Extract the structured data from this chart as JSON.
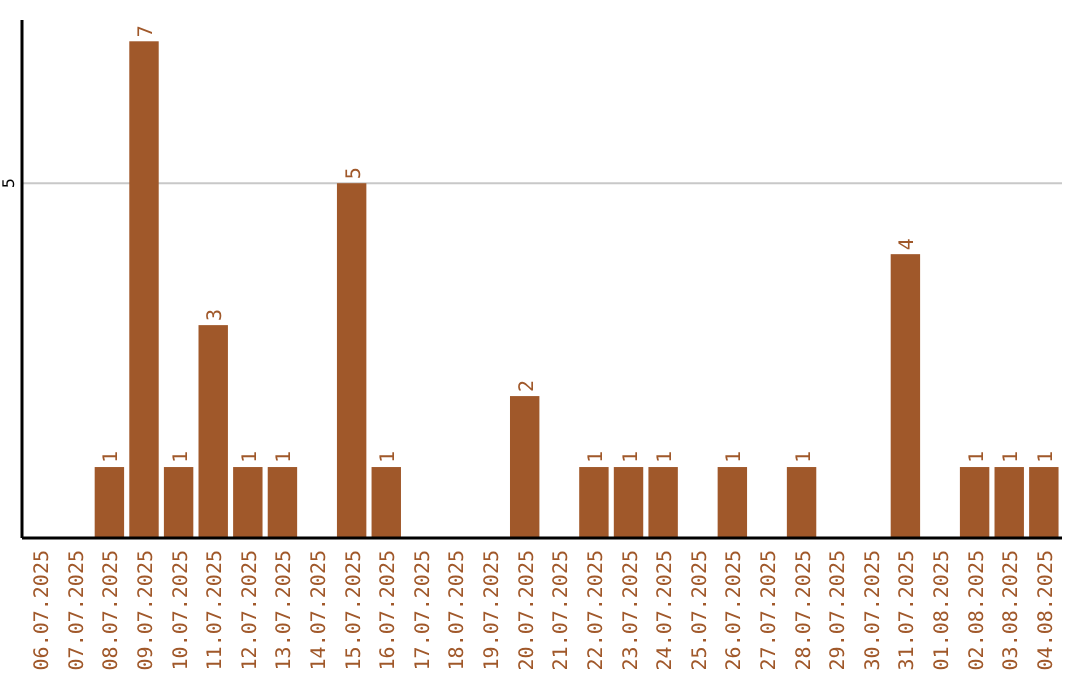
{
  "chart_data": {
    "type": "bar",
    "categories": [
      "06.07.2025",
      "07.07.2025",
      "08.07.2025",
      "09.07.2025",
      "10.07.2025",
      "11.07.2025",
      "12.07.2025",
      "13.07.2025",
      "14.07.2025",
      "15.07.2025",
      "16.07.2025",
      "17.07.2025",
      "18.07.2025",
      "19.07.2025",
      "20.07.2025",
      "21.07.2025",
      "22.07.2025",
      "23.07.2025",
      "24.07.2025",
      "25.07.2025",
      "26.07.2025",
      "27.07.2025",
      "28.07.2025",
      "29.07.2025",
      "30.07.2025",
      "31.07.2025",
      "01.08.2025",
      "02.08.2025",
      "03.08.2025",
      "04.08.2025"
    ],
    "values": [
      0,
      0,
      1,
      7,
      1,
      3,
      1,
      1,
      0,
      5,
      1,
      0,
      0,
      0,
      2,
      0,
      1,
      1,
      1,
      0,
      1,
      0,
      1,
      0,
      0,
      4,
      0,
      1,
      1,
      1
    ],
    "value_labels": [
      null,
      null,
      "1",
      "7",
      "1",
      "3",
      "1",
      "1",
      null,
      "5",
      "1",
      null,
      null,
      null,
      "2",
      null,
      "1",
      "1",
      "1",
      null,
      "1",
      null,
      "1",
      null,
      null,
      "4",
      null,
      "1",
      "1",
      "1"
    ],
    "color": "#a0582a",
    "ylim": [
      0,
      7.3
    ],
    "yticks": [
      5
    ],
    "grid": "y"
  }
}
